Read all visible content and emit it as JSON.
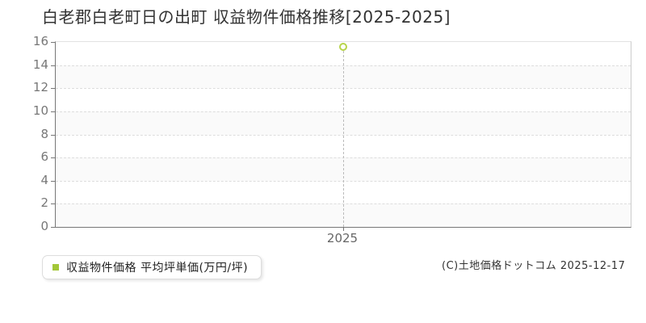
{
  "title": "白老郡白老町日の出町 収益物件価格推移[2025-2025]",
  "legend": {
    "marker_color": "#a3c738",
    "label": "収益物件価格 平均坪単価(万円/坪)"
  },
  "copyright": "(C)土地価格ドットコム 2025-12-17",
  "colors": {
    "title_text": "#333333",
    "axis": "#777777",
    "grid": "#dddddd",
    "band_alt": "#fafafa",
    "crosshair": "#bbbbbb",
    "tick_label": "#777777",
    "point_stroke": "#b7d44a",
    "point_fill": "#ffffff"
  },
  "chart_data": {
    "type": "scatter",
    "title": "白老郡白老町日の出町 収益物件価格推移[2025-2025]",
    "categories": [
      "2025"
    ],
    "series": [
      {
        "name": "収益物件価格 平均坪単価(万円/坪)",
        "values": [
          15.6
        ]
      }
    ],
    "xlabel": "",
    "ylabel": "",
    "ylim": [
      0,
      16
    ],
    "ytick_step": 2,
    "grid": "horizontal-dashed",
    "legend_position": "bottom-left",
    "point_style": "open-circle"
  }
}
